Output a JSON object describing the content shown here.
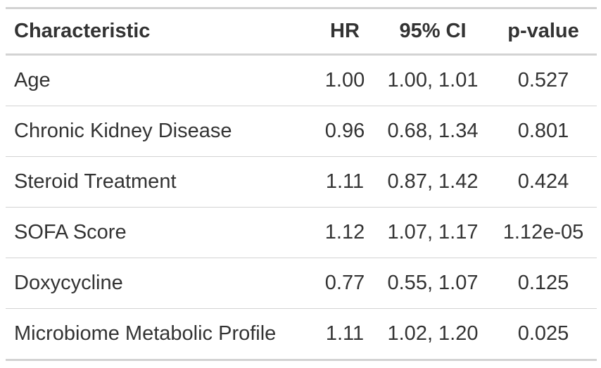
{
  "table": {
    "headers": {
      "characteristic": "Characteristic",
      "hr": "HR",
      "ci": "95% CI",
      "p": "p-value"
    },
    "rows": [
      {
        "characteristic": "Age",
        "hr": "1.00",
        "ci": "1.00, 1.01",
        "p": "0.527"
      },
      {
        "characteristic": "Chronic Kidney Disease",
        "hr": "0.96",
        "ci": "0.68, 1.34",
        "p": "0.801"
      },
      {
        "characteristic": "Steroid Treatment",
        "hr": "1.11",
        "ci": "0.87, 1.42",
        "p": "0.424"
      },
      {
        "characteristic": "SOFA Score",
        "hr": "1.12",
        "ci": "1.07, 1.17",
        "p": "1.12e-05"
      },
      {
        "characteristic": "Doxycycline",
        "hr": "0.77",
        "ci": "0.55, 1.07",
        "p": "0.125"
      },
      {
        "characteristic": "Microbiome Metabolic Profile",
        "hr": "1.11",
        "ci": "1.02, 1.20",
        "p": "0.025"
      }
    ]
  },
  "colors": {
    "text": "#333333",
    "rule": "#d3d3d3",
    "background": "#ffffff"
  }
}
